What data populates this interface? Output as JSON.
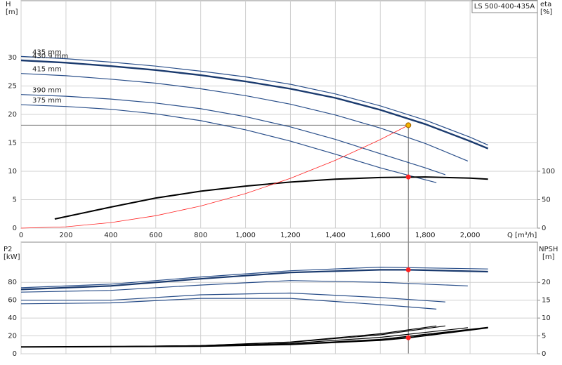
{
  "chart_data": [
    {
      "type": "line",
      "title": "LS 500-400-435A",
      "y_label": "H",
      "y_unit": "[m]",
      "y2_label": "eta",
      "y2_unit": "[%]",
      "x_label": "Q [m³/h]",
      "xlim": [
        0,
        2300
      ],
      "xticks": [
        0,
        200,
        400,
        600,
        800,
        {
          "value": 1000,
          "label": "1,000"
        },
        {
          "value": 1200,
          "label": "1,200"
        },
        {
          "value": 1400,
          "label": "1,400"
        },
        {
          "value": 1600,
          "label": "1,600"
        },
        {
          "value": 1800,
          "label": "1,800"
        },
        {
          "value": 2000,
          "label": "2,000"
        }
      ],
      "ylim": [
        0,
        40
      ],
      "yticks": [
        0,
        5,
        10,
        15,
        20,
        25,
        30
      ],
      "y2lim": [
        0,
        400
      ],
      "y2ticks": [
        0,
        50,
        100
      ],
      "grid": true,
      "series": [
        {
          "name": "435 mm",
          "color": "#2a4f8a",
          "linewidth": 1.2,
          "x": [
            0,
            200,
            400,
            600,
            800,
            1000,
            1200,
            1400,
            1600,
            1800,
            2000,
            2080
          ],
          "values": [
            30.2,
            29.8,
            29.2,
            28.5,
            27.6,
            26.6,
            25.3,
            23.6,
            21.5,
            19.0,
            16.0,
            14.6
          ]
        },
        {
          "name": "430.9 mm",
          "color": "#1a3a6e",
          "linewidth": 2.4,
          "x": [
            0,
            200,
            400,
            600,
            800,
            1000,
            1200,
            1400,
            1600,
            1800,
            2000,
            2080
          ],
          "values": [
            29.5,
            29.1,
            28.5,
            27.8,
            26.9,
            25.8,
            24.5,
            22.9,
            20.8,
            18.3,
            15.3,
            14.0
          ]
        },
        {
          "name": "415 mm",
          "color": "#2a4f8a",
          "linewidth": 1.2,
          "x": [
            0,
            200,
            400,
            600,
            800,
            1000,
            1200,
            1400,
            1600,
            1800,
            1990
          ],
          "values": [
            27.2,
            26.8,
            26.2,
            25.5,
            24.5,
            23.3,
            21.8,
            19.9,
            17.6,
            14.9,
            11.8
          ]
        },
        {
          "name": "390 mm",
          "color": "#2a4f8a",
          "linewidth": 1.2,
          "x": [
            0,
            200,
            400,
            600,
            800,
            1000,
            1200,
            1400,
            1600,
            1800,
            1890
          ],
          "values": [
            23.5,
            23.2,
            22.7,
            22.0,
            21.0,
            19.6,
            17.8,
            15.6,
            13.1,
            10.6,
            9.4
          ]
        },
        {
          "name": "375 mm",
          "color": "#2a4f8a",
          "linewidth": 1.2,
          "x": [
            0,
            200,
            400,
            600,
            800,
            1000,
            1200,
            1400,
            1600,
            1800,
            1850
          ],
          "values": [
            21.7,
            21.4,
            20.9,
            20.1,
            18.9,
            17.3,
            15.3,
            13.0,
            10.6,
            8.5,
            8.0
          ]
        },
        {
          "color": "#000000",
          "linewidth": 2,
          "axis": "y2",
          "x": [
            150,
            400,
            600,
            800,
            1000,
            1200,
            1400,
            1600,
            1800,
            2000,
            2080
          ],
          "values": [
            16,
            37,
            53,
            65,
            74,
            81,
            86,
            89,
            90,
            88,
            86
          ]
        },
        {
          "color": "#ff2020",
          "linewidth": 0.8,
          "x": [
            0,
            200,
            400,
            600,
            800,
            1000,
            1200,
            1400,
            1600,
            1725
          ],
          "values": [
            0,
            0.24,
            0.97,
            2.19,
            3.89,
            6.08,
            8.76,
            11.92,
            15.57,
            18.1
          ]
        }
      ],
      "operating_point": {
        "x": 1725,
        "y": 18.1,
        "y2": 90
      }
    },
    {
      "type": "line",
      "y_label": "P2",
      "y_unit": "[kW]",
      "y2_label": "NPSH",
      "y2_unit": "[m]",
      "xlim": [
        0,
        2300
      ],
      "xticks": [
        0,
        200,
        400,
        600,
        800,
        1000,
        1200,
        1400,
        1600,
        1800,
        2000
      ],
      "ylim": [
        0,
        125
      ],
      "yticks": [
        0,
        20,
        40,
        60,
        80
      ],
      "y2lim": [
        0,
        31.25
      ],
      "y2ticks": [
        0,
        5,
        10,
        15,
        20
      ],
      "grid": true,
      "series": [
        {
          "color": "#2a4f8a",
          "linewidth": 1.2,
          "x": [
            0,
            400,
            800,
            1200,
            1600,
            2080
          ],
          "values": [
            74,
            78,
            86,
            93,
            97,
            95
          ]
        },
        {
          "color": "#1a3a6e",
          "linewidth": 2.2,
          "x": [
            0,
            400,
            800,
            1200,
            1600,
            1725,
            2080
          ],
          "values": [
            72,
            76,
            84,
            91,
            94,
            94,
            92
          ]
        },
        {
          "color": "#2a4f8a",
          "linewidth": 1.2,
          "x": [
            0,
            400,
            800,
            1200,
            1600,
            1990
          ],
          "values": [
            69,
            71,
            77,
            82,
            80,
            76
          ]
        },
        {
          "color": "#2a4f8a",
          "linewidth": 1.2,
          "x": [
            0,
            400,
            800,
            1200,
            1600,
            1890
          ],
          "values": [
            60,
            60,
            66,
            68,
            63,
            58
          ]
        },
        {
          "color": "#2a4f8a",
          "linewidth": 1.2,
          "x": [
            0,
            400,
            800,
            1200,
            1600,
            1850
          ],
          "values": [
            56,
            57,
            62,
            62,
            55,
            50
          ]
        },
        {
          "color": "#000000",
          "linewidth": 1.4,
          "axis": "y2",
          "x": [
            0,
            400,
            800,
            1200,
            1600,
            2080
          ],
          "values": [
            1.9,
            2.0,
            2.1,
            2.7,
            4.0,
            7.4
          ]
        },
        {
          "color": "#000000",
          "linewidth": 2,
          "axis": "y2",
          "x": [
            0,
            400,
            800,
            1200,
            1600,
            1725,
            2080
          ],
          "values": [
            1.9,
            2.0,
            2.1,
            2.6,
            3.8,
            4.5,
            7.3
          ]
        },
        {
          "color": "#000000",
          "linewidth": 1.2,
          "axis": "y2",
          "x": [
            0,
            400,
            800,
            1200,
            1600,
            1990
          ],
          "values": [
            1.9,
            2.0,
            2.2,
            2.9,
            4.6,
            7.3
          ]
        },
        {
          "color": "#000000",
          "linewidth": 1.2,
          "axis": "y2",
          "x": [
            0,
            400,
            800,
            1200,
            1600,
            1890
          ],
          "values": [
            1.9,
            2.0,
            2.3,
            3.2,
            5.3,
            7.8
          ]
        },
        {
          "color": "#000000",
          "linewidth": 1.2,
          "axis": "y2",
          "x": [
            0,
            400,
            800,
            1200,
            1600,
            1850
          ],
          "values": [
            1.9,
            2.0,
            2.3,
            3.3,
            5.6,
            7.8
          ]
        }
      ],
      "operating_point": {
        "x": 1725,
        "y": 94,
        "y2": 4.5
      }
    }
  ]
}
